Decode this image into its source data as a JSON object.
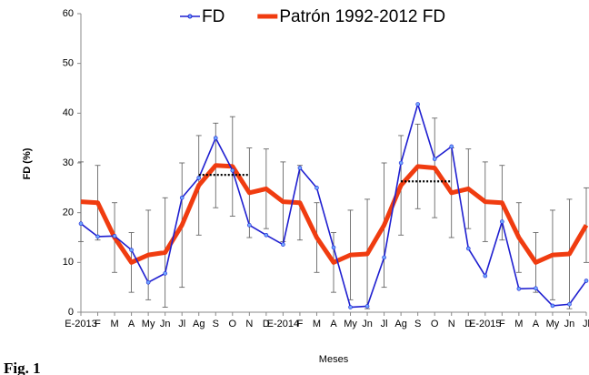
{
  "chart_data": {
    "type": "line",
    "y_label": "FD (%)",
    "x_label": "Meses",
    "caption": "Fig. 1",
    "categories": [
      "E-2013",
      "F",
      "M",
      "A",
      "My",
      "Jn",
      "Jl",
      "Ag",
      "S",
      "O",
      "N",
      "D",
      "E-2014",
      "F",
      "M",
      "A",
      "My",
      "Jn",
      "Jl",
      "Ag",
      "S",
      "O",
      "N",
      "D",
      "E-2015",
      "F",
      "M",
      "A",
      "My",
      "Jn",
      "Jl"
    ],
    "series": [
      {
        "name": "FD",
        "color": "#1f1fd0",
        "values": [
          17.8,
          15.2,
          15.3,
          12.5,
          6.0,
          7.8,
          23.0,
          27.0,
          35.0,
          28.5,
          17.5,
          15.5,
          13.6,
          29.0,
          25.0,
          13.0,
          1.0,
          1.2,
          11.0,
          30.0,
          41.8,
          30.8,
          33.3,
          12.8,
          7.3,
          18.2,
          4.7,
          4.8,
          1.3,
          1.6,
          6.3
        ]
      },
      {
        "name": "Patrón 1992-2012 FD",
        "color": "#f03c10",
        "values": [
          22.2,
          22.0,
          15.0,
          10.0,
          11.5,
          12.0,
          17.5,
          25.5,
          29.5,
          29.3,
          24.0,
          24.8,
          22.2,
          22.0,
          15.0,
          10.0,
          11.5,
          11.7,
          17.5,
          25.5,
          29.3,
          29.0,
          24.0,
          24.8,
          22.2,
          22.0,
          15.0,
          10.0,
          11.5,
          11.7,
          17.5
        ],
        "errors": [
          8,
          7.5,
          7,
          6,
          9,
          11,
          12.5,
          10,
          8.5,
          10,
          9,
          8,
          8,
          7.5,
          7,
          6,
          9,
          11,
          12.5,
          10,
          8.5,
          10,
          9,
          8,
          8,
          7.5,
          7,
          6,
          9,
          11,
          7.5
        ]
      }
    ],
    "dotted_lines": [
      {
        "value": 27.6,
        "categories": [
          7,
          10
        ]
      },
      {
        "value": 26.3,
        "categories": [
          19,
          22
        ]
      }
    ],
    "ylim": [
      0,
      60
    ],
    "yticks": [
      0,
      10,
      20,
      30,
      40,
      50,
      60
    ],
    "legend": "top"
  }
}
